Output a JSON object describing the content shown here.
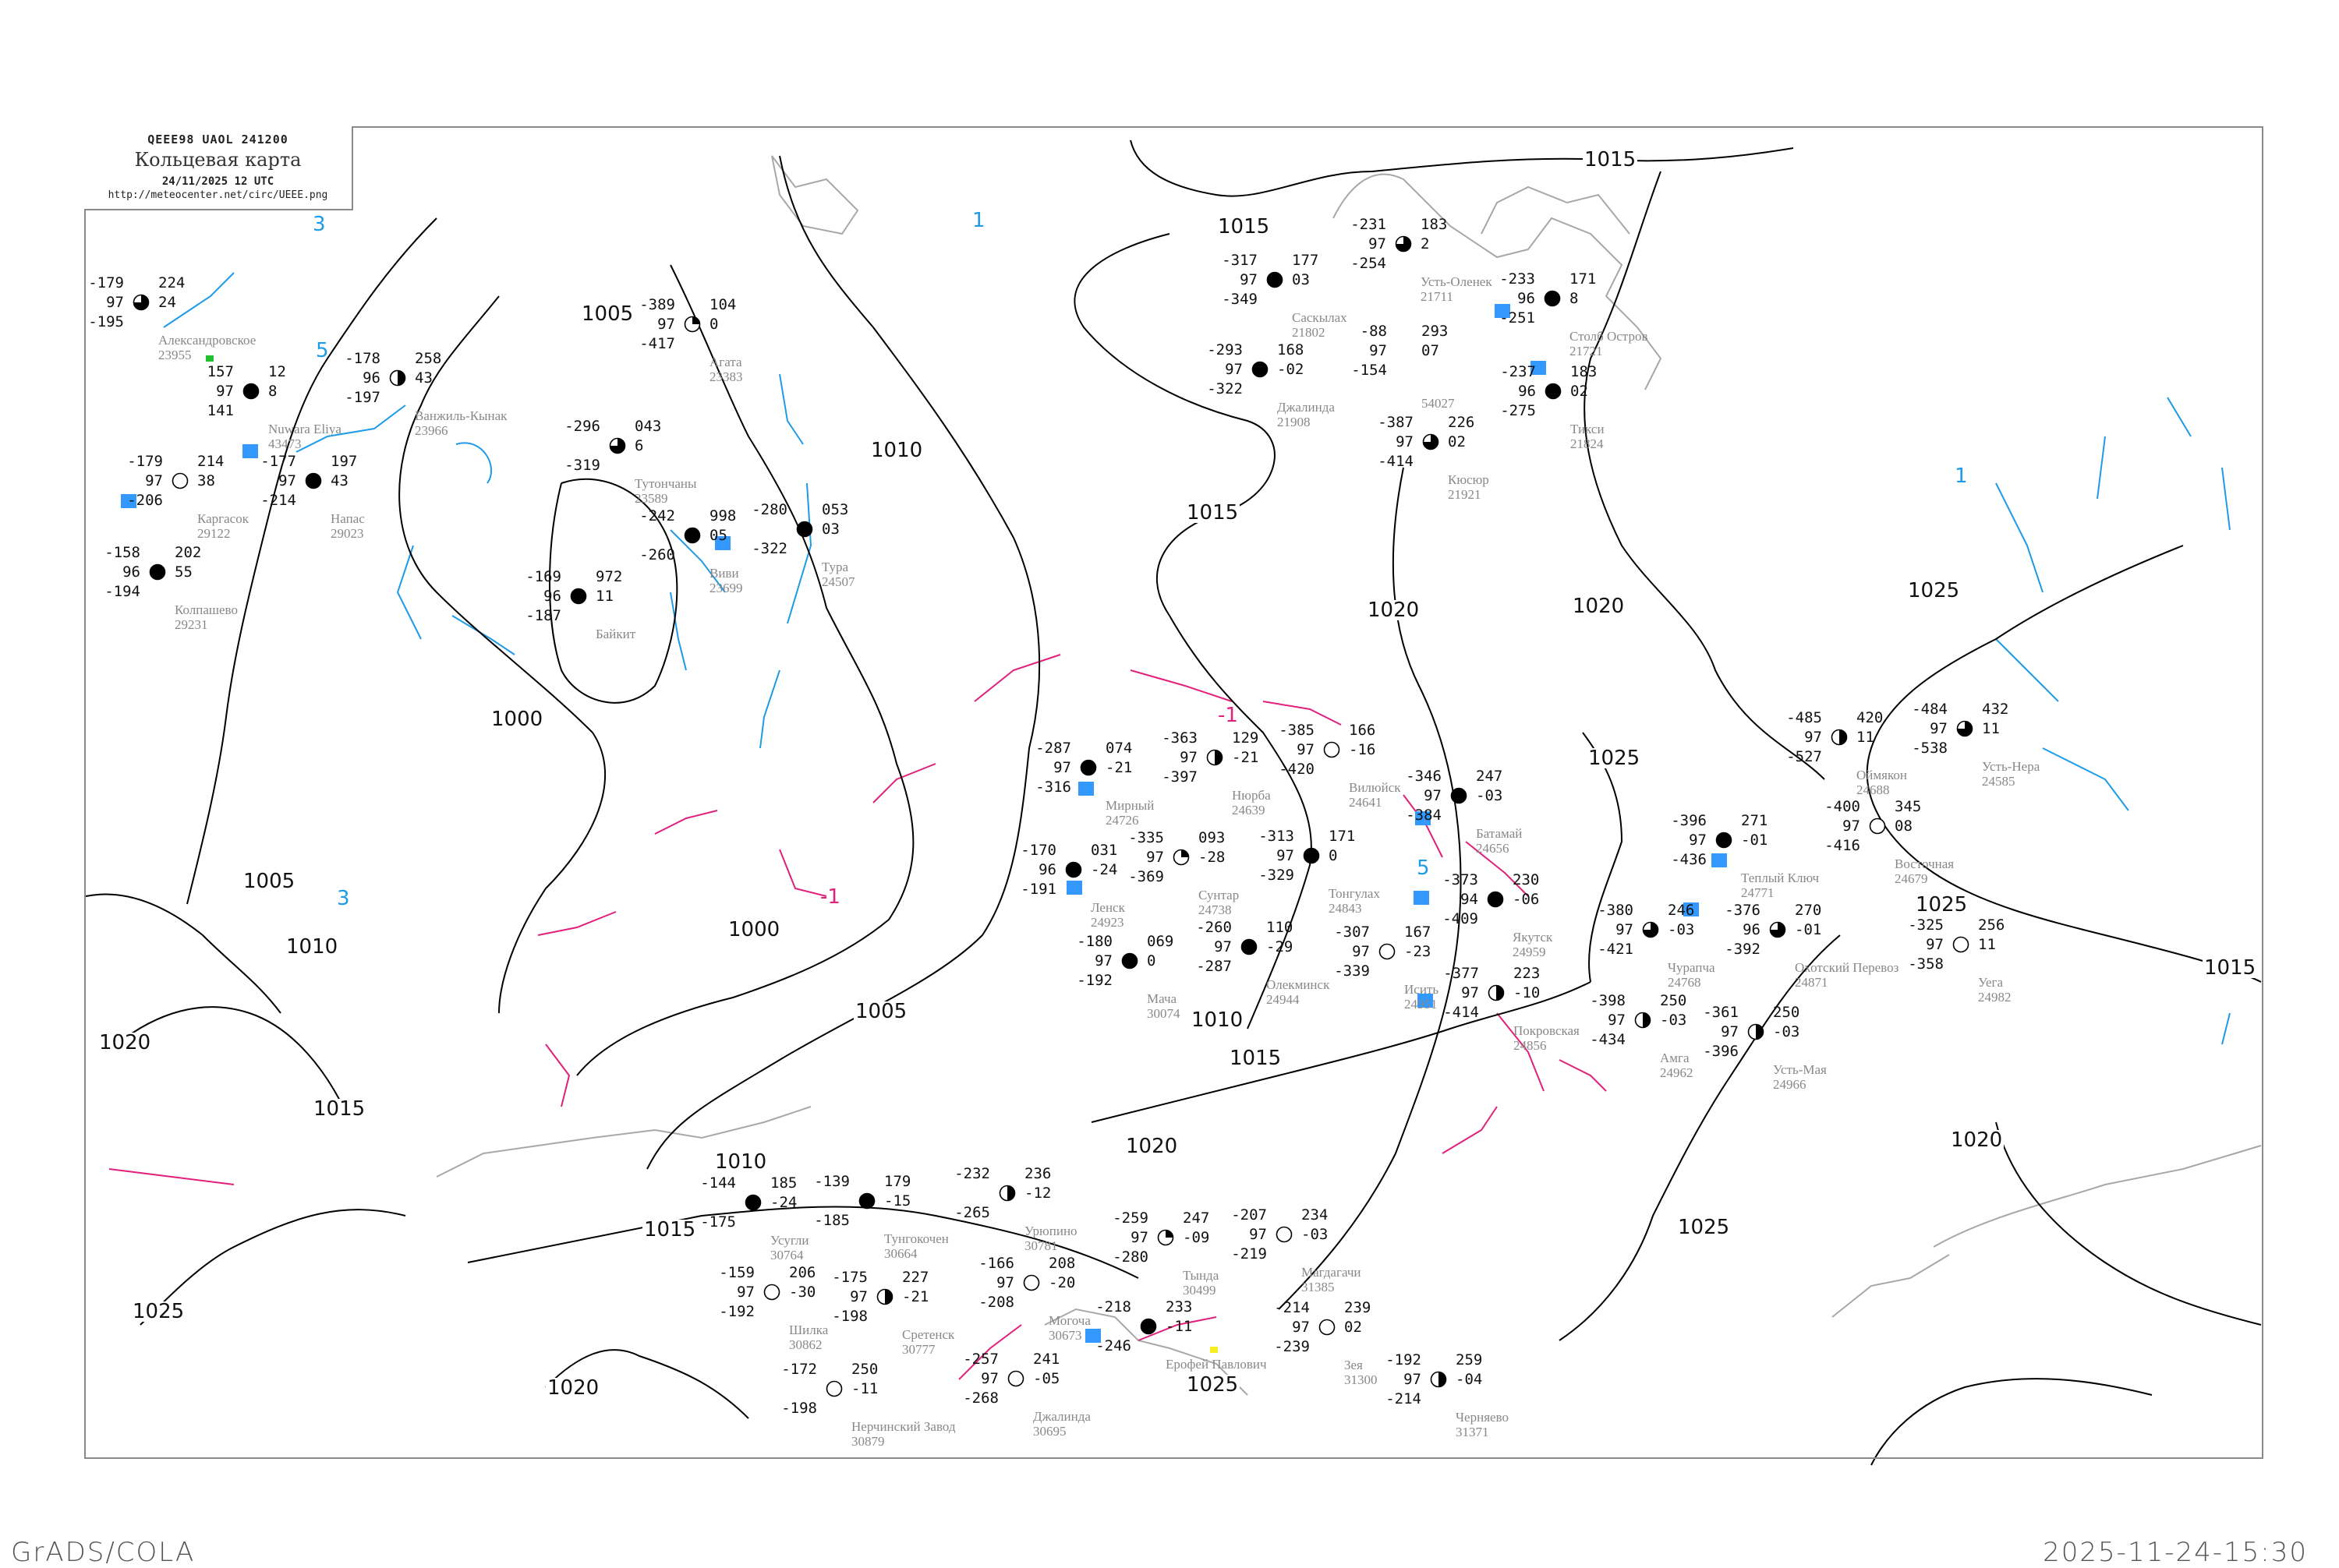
{
  "header": {
    "code": "QEEE98  UAOL  241200",
    "title": "Кольцевая карта",
    "date": "24/11/2025 12 UTC",
    "url": "http://meteocenter.net/circ/UEEE.png"
  },
  "footer": {
    "left": "GrADS/COLA",
    "right": "2025-11-24-15:30"
  },
  "colors": {
    "isobar": "#000000",
    "isotherm_warm": "#1e9be6",
    "isotherm_zero": "#e0207a",
    "coastline": "#a8a8a8",
    "station_name": "#888888",
    "precip_marker": "#3399ff",
    "frame": "#8a8a8a"
  },
  "isobar_labels": [
    "1015",
    "1015",
    "1015",
    "1015",
    "1015",
    "1015",
    "1010",
    "1010",
    "1010",
    "1010",
    "1005",
    "1005",
    "1005",
    "1000",
    "1000",
    "1020",
    "1020",
    "1020",
    "1020",
    "1020",
    "1020",
    "1025",
    "1025",
    "1025",
    "1025",
    "1025",
    "1025",
    "1015"
  ],
  "isotherm_labels": [
    "5",
    "5",
    "3",
    "3",
    "1",
    "1",
    "-1",
    "-1"
  ],
  "stations": [
    {
      "name": "Александровское",
      "id": "23955",
      "t": "-179",
      "v": "97",
      "td": "-195",
      "p": "224",
      "tend": "24",
      "cover": 6
    },
    {
      "name": "Nuwara Eliya",
      "id": "43473",
      "t": "157",
      "v": "97",
      "td": "141",
      "p": "12",
      "tend": "8",
      "cover": 8
    },
    {
      "name": "Каргасок",
      "id": "29122",
      "t": "-179",
      "v": "97",
      "td": "-206",
      "p": "214",
      "tend": "38",
      "cover": 0
    },
    {
      "name": "Напас",
      "id": "29023",
      "t": "-177",
      "v": "97",
      "td": "-214",
      "p": "197",
      "tend": "43",
      "cover": 8
    },
    {
      "name": "Ванжиль-Кынак",
      "id": "23966",
      "t": "-178",
      "v": "96",
      "td": "-197",
      "p": "258",
      "tend": "43",
      "cover": 4
    },
    {
      "name": "Колпашево",
      "id": "29231",
      "t": "-158",
      "v": "96",
      "td": "-194",
      "p": "202",
      "tend": "55",
      "cover": 8
    },
    {
      "name": "Усть-Оленек",
      "id": "21711",
      "t": "-231",
      "v": "97",
      "td": "-254",
      "p": "183",
      "tend": "2",
      "cover": 6
    },
    {
      "name": "Саскылах",
      "id": "21802",
      "t": "-317",
      "v": "97",
      "td": "-349",
      "p": "177",
      "tend": "03",
      "cover": 8
    },
    {
      "name": "Джалинда",
      "id": "21908",
      "t": "-293",
      "v": "97",
      "td": "-322",
      "p": "168",
      "tend": "-02",
      "cover": 8
    },
    {
      "name": "",
      "id": "54027",
      "t": "-88",
      "v": "97",
      "td": "-154",
      "p": "293",
      "tend": "07",
      "cover": -1
    },
    {
      "name": "Столб Остров",
      "id": "21721",
      "t": "-233",
      "v": "96",
      "td": "-251",
      "p": "171",
      "tend": "8",
      "cover": 8
    },
    {
      "name": "Тикси",
      "id": "21824",
      "t": "-237",
      "v": "96",
      "td": "-275",
      "p": "183",
      "tend": "02",
      "cover": 8
    },
    {
      "name": "Кюсюр",
      "id": "21921",
      "t": "-387",
      "v": "97",
      "td": "-414",
      "p": "226",
      "tend": "02",
      "cover": 6
    },
    {
      "name": "Мирный",
      "id": "24726",
      "t": "-287",
      "v": "97",
      "td": "-316",
      "p": "074",
      "tend": "-21",
      "cover": 8
    },
    {
      "name": "Нюрба",
      "id": "24639",
      "t": "-363",
      "v": "97",
      "td": "-397",
      "p": "129",
      "tend": "-21",
      "cover": 4
    },
    {
      "name": "Вилюйск",
      "id": "24641",
      "t": "-385",
      "v": "97",
      "td": "-420",
      "p": "166",
      "tend": "-16",
      "cover": 0
    },
    {
      "name": "Сунтар",
      "id": "24738",
      "t": "-335",
      "v": "97",
      "td": "-369",
      "p": "093",
      "tend": "-28",
      "cover": 2
    },
    {
      "name": "Ленск",
      "id": "24923",
      "t": "-170",
      "v": "96",
      "td": "-191",
      "p": "031",
      "tend": "-24",
      "cover": 8
    },
    {
      "name": "Мача",
      "id": "30074",
      "t": "-180",
      "v": "97",
      "td": "-192",
      "p": "069",
      "tend": "0",
      "cover": 8
    },
    {
      "name": "Олекминск",
      "id": "24944",
      "t": "-260",
      "v": "97",
      "td": "-287",
      "p": "110",
      "tend": "-29",
      "cover": 8
    },
    {
      "name": "Тонгулах",
      "id": "24843",
      "t": "-313",
      "v": "97",
      "td": "-329",
      "p": "171",
      "tend": "0",
      "cover": 8
    },
    {
      "name": "Исить",
      "id": "24951",
      "t": "-307",
      "v": "97",
      "td": "-339",
      "p": "167",
      "tend": "-23",
      "cover": 0
    },
    {
      "name": "Батамай",
      "id": "24656",
      "t": "-346",
      "v": "97",
      "td": "-384",
      "p": "247",
      "tend": "-03",
      "cover": 8
    },
    {
      "name": "Якутск",
      "id": "24959",
      "t": "-373",
      "v": "94",
      "td": "-409",
      "p": "230",
      "tend": "-06",
      "cover": 8
    },
    {
      "name": "Покровская",
      "id": "24856",
      "t": "-377",
      "v": "97",
      "td": "-414",
      "p": "223",
      "tend": "-10",
      "cover": 4
    },
    {
      "name": "Теплый Ключ",
      "id": "24771",
      "t": "-396",
      "v": "97",
      "td": "-436",
      "p": "271",
      "tend": "-01",
      "cover": 8
    },
    {
      "name": "Восточная",
      "id": "24679",
      "t": "-400",
      "v": "97",
      "td": "-416",
      "p": "345",
      "tend": "08",
      "cover": 0
    },
    {
      "name": "Оймякон",
      "id": "24688",
      "t": "-485",
      "v": "97",
      "td": "-527",
      "p": "420",
      "tend": "11",
      "cover": 4
    },
    {
      "name": "Усть-Нера",
      "id": "24585",
      "t": "-484",
      "v": "97",
      "td": "-538",
      "p": "432",
      "tend": "11",
      "cover": 6
    },
    {
      "name": "Чурапча",
      "id": "24768",
      "t": "-380",
      "v": "97",
      "td": "-421",
      "p": "246",
      "tend": "-03",
      "cover": 6
    },
    {
      "name": "Охотский Перевоз",
      "id": "24871",
      "t": "-376",
      "v": "96",
      "td": "-392",
      "p": "270",
      "tend": "-01",
      "cover": 6
    },
    {
      "name": "Амга",
      "id": "24962",
      "t": "-398",
      "v": "97",
      "td": "-434",
      "p": "250",
      "tend": "-03",
      "cover": 4
    },
    {
      "name": "Усть-Мая",
      "id": "24966",
      "t": "-361",
      "v": "97",
      "td": "-396",
      "p": "250",
      "tend": "-03",
      "cover": 4
    },
    {
      "name": "Уега",
      "id": "24982",
      "t": "-325",
      "v": "97",
      "td": "-358",
      "p": "256",
      "tend": "11",
      "cover": 0
    },
    {
      "name": "Агата",
      "id": "23383",
      "t": "-389",
      "v": "97",
      "td": "-417",
      "p": "104",
      "tend": "0",
      "cover": 2
    },
    {
      "name": "Тутончаны",
      "id": "23589",
      "t": "-296",
      "v": "",
      "td": "-319",
      "p": "043",
      "tend": "6",
      "cover": 6
    },
    {
      "name": "Виви",
      "id": "23699",
      "t": "-242",
      "v": "",
      "td": "-260",
      "p": "998",
      "tend": "05",
      "cover": 8
    },
    {
      "name": "Тура",
      "id": "24507",
      "t": "-280",
      "v": "",
      "td": "-322",
      "p": "053",
      "tend": "03",
      "cover": 8
    },
    {
      "name": "Байкит",
      "id": "",
      "t": "-169",
      "v": "96",
      "td": "-187",
      "p": "972",
      "tend": "11",
      "cover": 8
    },
    {
      "name": "Тында",
      "id": "30499",
      "t": "-259",
      "v": "97",
      "td": "-280",
      "p": "247",
      "tend": "-09",
      "cover": 2
    },
    {
      "name": "Могоча",
      "id": "30673",
      "t": "-166",
      "v": "97",
      "td": "-208",
      "p": "208",
      "tend": "-20",
      "cover": 0
    },
    {
      "name": "Ерофей Павлович",
      "id": "",
      "t": "-218",
      "v": "",
      "td": "-246",
      "p": "233",
      "tend": "-11",
      "cover": 8
    },
    {
      "name": "Джалинда",
      "id": "30695",
      "t": "-257",
      "v": "97",
      "td": "-268",
      "p": "241",
      "tend": "-05",
      "cover": 0
    },
    {
      "name": "Зея",
      "id": "31300",
      "t": "-214",
      "v": "97",
      "td": "-239",
      "p": "239",
      "tend": "02",
      "cover": 0
    },
    {
      "name": "Магдагачи",
      "id": "31385",
      "t": "-207",
      "v": "97",
      "td": "-219",
      "p": "234",
      "tend": "-03",
      "cover": 0
    },
    {
      "name": "Черняево",
      "id": "31371",
      "t": "-192",
      "v": "97",
      "td": "-214",
      "p": "259",
      "tend": "-04",
      "cover": 4
    },
    {
      "name": "Нерчинский Завод",
      "id": "30879",
      "t": "-172",
      "v": "",
      "td": "-198",
      "p": "250",
      "tend": "-11",
      "cover": 0
    },
    {
      "name": "Сретенск",
      "id": "30777",
      "t": "-175",
      "v": "97",
      "td": "-198",
      "p": "227",
      "tend": "-21",
      "cover": 4
    },
    {
      "name": "Шилка",
      "id": "30862",
      "t": "-159",
      "v": "97",
      "td": "-192",
      "p": "206",
      "tend": "-30",
      "cover": 0
    },
    {
      "name": "Урюпино",
      "id": "30781",
      "t": "-232",
      "v": "",
      "td": "-265",
      "p": "236",
      "tend": "-12",
      "cover": 4
    },
    {
      "name": "Тунгокочен",
      "id": "30664",
      "t": "-139",
      "v": "",
      "td": "-185",
      "p": "179",
      "tend": "-15",
      "cover": 8
    },
    {
      "name": "Усугли",
      "id": "30764",
      "t": "-144",
      "v": "",
      "td": "-175",
      "p": "185",
      "tend": "-24",
      "cover": 8
    }
  ]
}
